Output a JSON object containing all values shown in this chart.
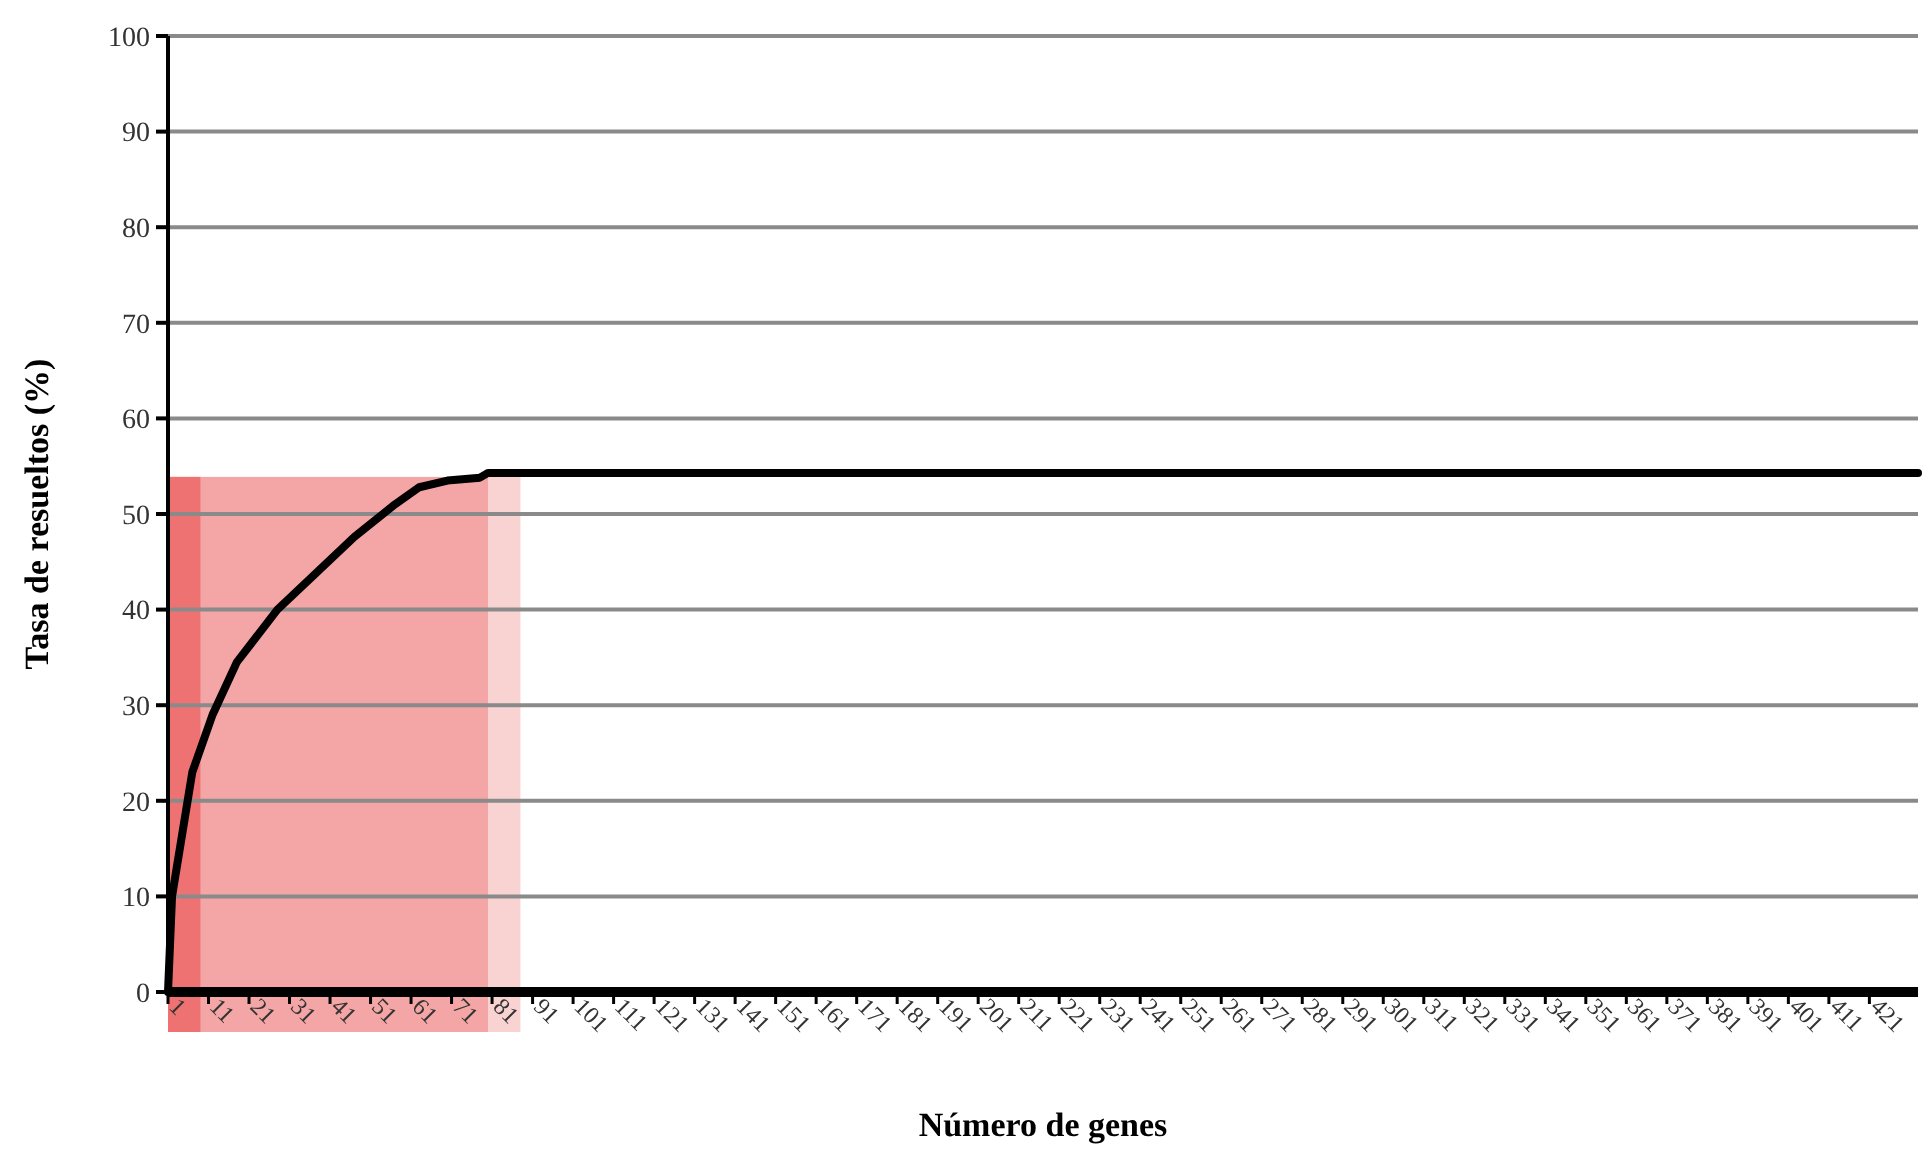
{
  "chart_data": {
    "type": "line",
    "xlabel": "Número de genes",
    "ylabel": "Tasa de resueltos (%)",
    "xlim": [
      1,
      433
    ],
    "xticks": [
      1,
      11,
      21,
      31,
      41,
      51,
      61,
      71,
      81,
      91,
      101,
      111,
      121,
      131,
      141,
      151,
      161,
      171,
      181,
      191,
      201,
      211,
      221,
      231,
      241,
      251,
      261,
      271,
      281,
      291,
      301,
      311,
      321,
      331,
      341,
      351,
      361,
      371,
      381,
      391,
      401,
      411,
      421
    ],
    "ylim": [
      0,
      100
    ],
    "yticks": [
      0,
      10,
      20,
      30,
      40,
      50,
      60,
      70,
      80,
      90,
      100
    ],
    "grid": "y",
    "marker": "none",
    "line_style": "solid",
    "bands": [
      {
        "axis": "x",
        "from": 1,
        "to": 80,
        "color": "#f4a5a5"
      },
      {
        "axis": "x",
        "from": 80,
        "to": 88,
        "color": "#f9d2d2"
      },
      {
        "axis": "x",
        "from": 1,
        "to": 9,
        "color": "#ef7272"
      }
    ],
    "series": [
      {
        "color": "#000000",
        "x": [
          1,
          2,
          7,
          12,
          18,
          28,
          38,
          47,
          57,
          63,
          70,
          78,
          80,
          85,
          433
        ],
        "values": [
          0,
          10,
          23,
          29,
          34.5,
          40,
          44,
          47.6,
          51,
          52.8,
          53.5,
          53.8,
          54.3,
          54.3,
          54.3
        ]
      }
    ]
  }
}
